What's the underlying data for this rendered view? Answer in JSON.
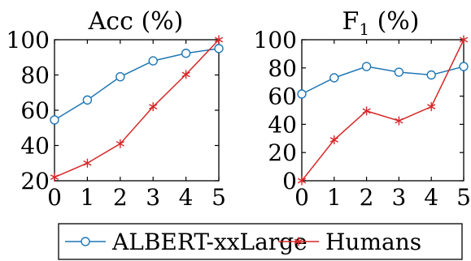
{
  "chart_data": [
    {
      "type": "line",
      "title": "Acc (%)",
      "x": [
        0,
        1,
        2,
        3,
        4,
        5
      ],
      "xlim": [
        0,
        5
      ],
      "ylim": [
        20,
        100
      ],
      "xticks": [
        "0",
        "1",
        "2",
        "3",
        "4",
        "5"
      ],
      "yticks": [
        "20",
        "40",
        "60",
        "80",
        "100"
      ],
      "grid": false,
      "series": [
        {
          "name": "ALBERT-xxLarge",
          "color": "#1f77b4",
          "marker": "circle",
          "values": [
            54.5,
            65.8,
            79,
            88,
            92.3,
            95
          ]
        },
        {
          "name": "Humans",
          "color": "#d62728",
          "marker": "asterisk",
          "values": [
            22,
            30,
            41,
            62,
            80.3,
            100
          ]
        }
      ]
    },
    {
      "type": "line",
      "title": "F1 (%)",
      "title_main": "F",
      "title_sub": "1",
      "title_rest": " (%)",
      "x": [
        0,
        1,
        2,
        3,
        4,
        5
      ],
      "xlim": [
        0,
        5
      ],
      "ylim": [
        0,
        100
      ],
      "xticks": [
        "0",
        "1",
        "2",
        "3",
        "4",
        "5"
      ],
      "yticks": [
        "0",
        "20",
        "40",
        "60",
        "80",
        "100"
      ],
      "grid": false,
      "series": [
        {
          "name": "ALBERT-xxLarge",
          "color": "#1f77b4",
          "marker": "circle",
          "values": [
            61.5,
            73,
            81,
            77,
            75,
            81
          ]
        },
        {
          "name": "Humans",
          "color": "#d62728",
          "marker": "asterisk",
          "values": [
            0,
            29,
            49.5,
            42.5,
            52.5,
            100
          ]
        }
      ]
    }
  ],
  "legend": {
    "position": "bottom",
    "items": [
      {
        "label": "ALBERT-xxLarge",
        "color": "#1f77b4",
        "marker": "circle"
      },
      {
        "label": "Humans",
        "color": "#d62728",
        "marker": "asterisk"
      }
    ]
  }
}
